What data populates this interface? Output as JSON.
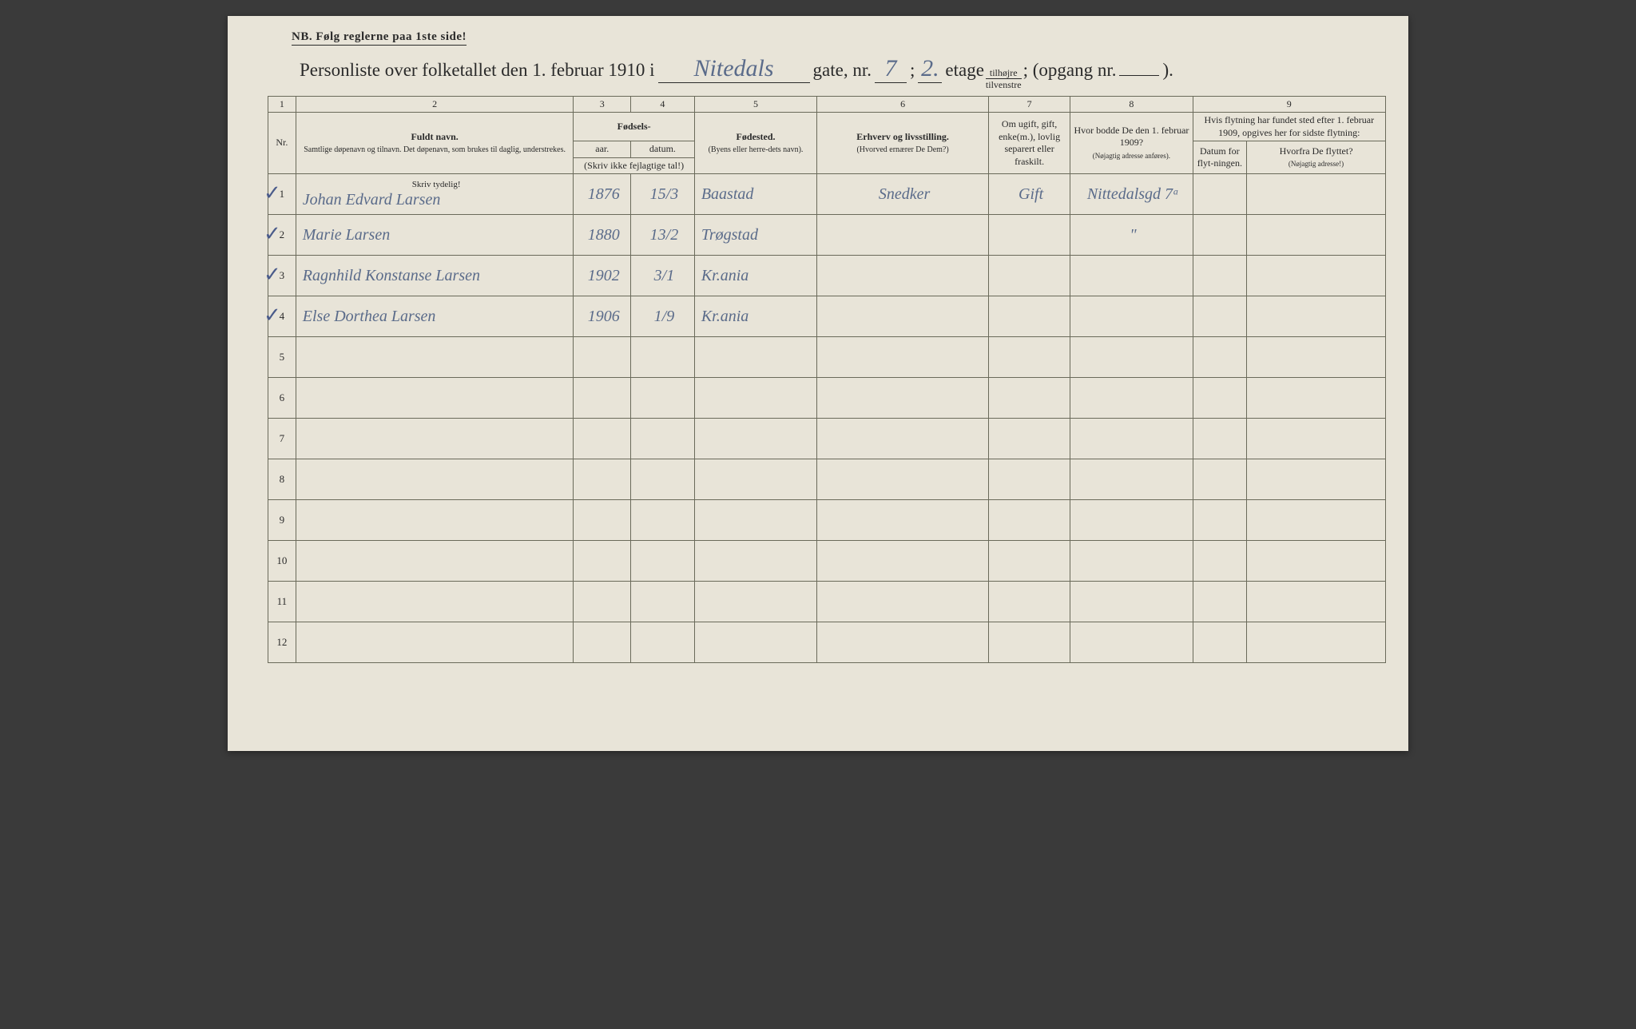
{
  "nb_text": "NB.   Følg reglerne paa 1ste side!",
  "title_prefix": "Personliste over folketallet den 1. februar 1910 i",
  "street_name": "Nitedals",
  "label_gate": "gate, nr.",
  "house_nr": "7",
  "label_semi": ";",
  "floor_nr": "2.",
  "label_etage": "etage",
  "fraction_top": "tilhøjre",
  "fraction_bot": "tilvenstre",
  "label_opgang": "; (opgang nr.",
  "opgang_nr": "",
  "label_close": ").",
  "columns": {
    "c1": "1",
    "c2": "2",
    "c3": "3",
    "c4": "4",
    "c5": "5",
    "c6": "6",
    "c7": "7",
    "c8": "8",
    "c9": "9"
  },
  "headers": {
    "nr": "Nr.",
    "fuldt_navn": "Fuldt navn.",
    "fuldt_sub": "Samtlige døpenavn og tilnavn.  Det døpenavn, som brukes til daglig, understrekes.",
    "fodsels": "Fødsels-",
    "aar": "aar.",
    "datum": "datum.",
    "skriv_ikke": "(Skriv ikke fejlagtige tal!)",
    "fodested": "Fødested.",
    "fodested_sub": "(Byens eller herre-dets navn).",
    "erhverv": "Erhverv og livsstilling.",
    "erhverv_sub": "(Hvorved ernærer De Dem?)",
    "om_ugift": "Om ugift, gift, enke(m.), lovlig separert eller fraskilt.",
    "hvor_bodde": "Hvor bodde De den 1. februar 1909?",
    "hvor_sub": "(Nøjagtig adresse anføres).",
    "hvis_flyt": "Hvis flytning har fundet sted efter 1. februar 1909, opgives her for sidste flytning:",
    "datum_flyt": "Datum for flyt-ningen.",
    "hvorfra": "Hvorfra De flyttet?",
    "hvorfra_sub": "(Nøjagtig adresse!)",
    "skriv_tydelig": "Skriv tydelig!"
  },
  "rows": [
    {
      "nr": "1",
      "check": "✓",
      "name": "Johan Edvard Larsen",
      "year": "1876",
      "date": "15/3",
      "birthplace": "Baastad",
      "occupation": "Snedker",
      "status": "Gift",
      "addr1909": "Nittedalsgd 7ᵃ",
      "move_date": "",
      "move_from": ""
    },
    {
      "nr": "2",
      "check": "✓",
      "name": "Marie Larsen",
      "year": "1880",
      "date": "13/2",
      "birthplace": "Trøgstad",
      "occupation": "",
      "status": "",
      "addr1909": "\"",
      "move_date": "",
      "move_from": ""
    },
    {
      "nr": "3",
      "check": "✓",
      "name": "Ragnhild Konstanse Larsen",
      "year": "1902",
      "date": "3/1",
      "birthplace": "Kr.ania",
      "occupation": "",
      "status": "",
      "addr1909": "",
      "move_date": "",
      "move_from": ""
    },
    {
      "nr": "4",
      "check": "✓",
      "name": "Else Dorthea Larsen",
      "year": "1906",
      "date": "1/9",
      "birthplace": "Kr.ania",
      "occupation": "",
      "status": "",
      "addr1909": "",
      "move_date": "",
      "move_from": ""
    },
    {
      "nr": "5",
      "check": "",
      "name": "",
      "year": "",
      "date": "",
      "birthplace": "",
      "occupation": "",
      "status": "",
      "addr1909": "",
      "move_date": "",
      "move_from": ""
    },
    {
      "nr": "6",
      "check": "",
      "name": "",
      "year": "",
      "date": "",
      "birthplace": "",
      "occupation": "",
      "status": "",
      "addr1909": "",
      "move_date": "",
      "move_from": ""
    },
    {
      "nr": "7",
      "check": "",
      "name": "",
      "year": "",
      "date": "",
      "birthplace": "",
      "occupation": "",
      "status": "",
      "addr1909": "",
      "move_date": "",
      "move_from": ""
    },
    {
      "nr": "8",
      "check": "",
      "name": "",
      "year": "",
      "date": "",
      "birthplace": "",
      "occupation": "",
      "status": "",
      "addr1909": "",
      "move_date": "",
      "move_from": ""
    },
    {
      "nr": "9",
      "check": "",
      "name": "",
      "year": "",
      "date": "",
      "birthplace": "",
      "occupation": "",
      "status": "",
      "addr1909": "",
      "move_date": "",
      "move_from": ""
    },
    {
      "nr": "10",
      "check": "",
      "name": "",
      "year": "",
      "date": "",
      "birthplace": "",
      "occupation": "",
      "status": "",
      "addr1909": "",
      "move_date": "",
      "move_from": ""
    },
    {
      "nr": "11",
      "check": "",
      "name": "",
      "year": "",
      "date": "",
      "birthplace": "",
      "occupation": "",
      "status": "",
      "addr1909": "",
      "move_date": "",
      "move_from": ""
    },
    {
      "nr": "12",
      "check": "",
      "name": "",
      "year": "",
      "date": "",
      "birthplace": "",
      "occupation": "",
      "status": "",
      "addr1909": "",
      "move_date": "",
      "move_from": ""
    }
  ],
  "col_widths": {
    "nr": 34,
    "name": 340,
    "year": 70,
    "date": 78,
    "birthplace": 150,
    "occupation": 210,
    "status": 100,
    "addr1909": 150,
    "move_date": 66,
    "move_from": 170
  }
}
